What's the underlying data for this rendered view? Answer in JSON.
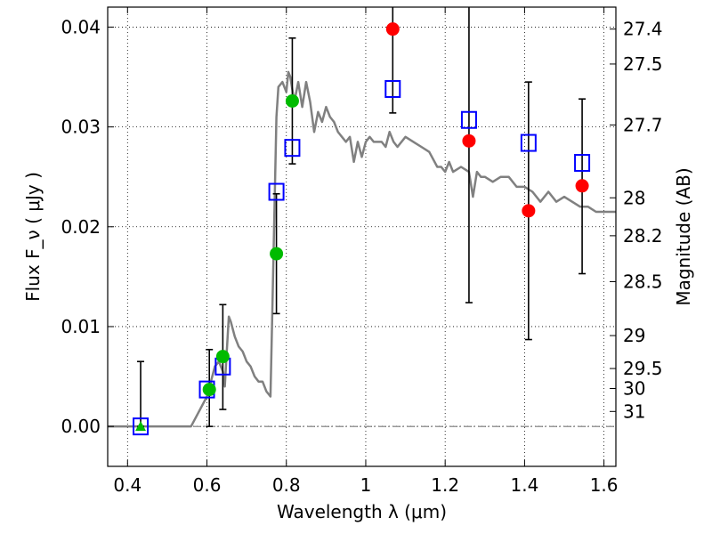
{
  "chart_data": {
    "type": "scatter",
    "xlabel": "Wavelength  λ (μm)",
    "ylabel": "Flux  F_ν  ( μJy )",
    "ylabel_right": "Magnitude (AB)",
    "xlim": [
      0.35,
      1.63
    ],
    "ylim": [
      -0.004,
      0.042
    ],
    "grid": true,
    "x_ticks": [
      0.4,
      0.6,
      0.8,
      1.0,
      1.2,
      1.4,
      1.6
    ],
    "x_tick_labels": [
      "0.4",
      "0.6",
      "0.8",
      "1",
      "1.2",
      "1.4",
      "1.6"
    ],
    "y_ticks": [
      0.0,
      0.01,
      0.02,
      0.03,
      0.04
    ],
    "y_tick_labels": [
      "0.00",
      "0.01",
      "0.02",
      "0.03",
      "0.04"
    ],
    "right_ticks": [
      {
        "label": "27.4",
        "flux": 0.0398
      },
      {
        "label": "27.5",
        "flux": 0.0363
      },
      {
        "label": "27.7",
        "flux": 0.0302
      },
      {
        "label": "28",
        "flux": 0.0229
      },
      {
        "label": "28.2",
        "flux": 0.0191
      },
      {
        "label": "28.5",
        "flux": 0.0145
      },
      {
        "label": "29",
        "flux": 0.0091
      },
      {
        "label": "29.5",
        "flux": 0.0058
      },
      {
        "label": "30",
        "flux": 0.0038
      },
      {
        "label": "31",
        "flux": 0.0015
      }
    ],
    "series": [
      {
        "type": "line",
        "color": "#808080",
        "x": [
          0.35,
          0.56,
          0.58,
          0.6,
          0.61,
          0.62,
          0.63,
          0.64,
          0.645,
          0.65,
          0.655,
          0.66,
          0.67,
          0.68,
          0.69,
          0.7,
          0.71,
          0.72,
          0.73,
          0.74,
          0.75,
          0.76,
          0.765,
          0.775,
          0.78,
          0.79,
          0.8,
          0.805,
          0.81,
          0.82,
          0.83,
          0.84,
          0.85,
          0.86,
          0.87,
          0.88,
          0.89,
          0.9,
          0.91,
          0.92,
          0.93,
          0.94,
          0.95,
          0.96,
          0.97,
          0.98,
          0.99,
          1.0,
          1.01,
          1.02,
          1.03,
          1.04,
          1.05,
          1.06,
          1.07,
          1.08,
          1.1,
          1.12,
          1.14,
          1.16,
          1.18,
          1.19,
          1.2,
          1.21,
          1.22,
          1.24,
          1.26,
          1.27,
          1.28,
          1.29,
          1.3,
          1.32,
          1.34,
          1.36,
          1.38,
          1.4,
          1.42,
          1.44,
          1.46,
          1.48,
          1.5,
          1.52,
          1.54,
          1.56,
          1.58,
          1.6,
          1.63
        ],
        "y": [
          0.0,
          0.0,
          0.0015,
          0.003,
          0.0045,
          0.006,
          0.0065,
          0.0055,
          0.004,
          0.0075,
          0.011,
          0.0105,
          0.009,
          0.008,
          0.0075,
          0.0065,
          0.006,
          0.005,
          0.0045,
          0.0045,
          0.0035,
          0.003,
          0.012,
          0.031,
          0.034,
          0.0345,
          0.0335,
          0.0355,
          0.035,
          0.0325,
          0.0345,
          0.032,
          0.0345,
          0.0325,
          0.0295,
          0.0315,
          0.0305,
          0.032,
          0.031,
          0.0305,
          0.0295,
          0.029,
          0.0285,
          0.029,
          0.0265,
          0.0285,
          0.027,
          0.0285,
          0.029,
          0.0285,
          0.0285,
          0.0285,
          0.028,
          0.0295,
          0.0285,
          0.028,
          0.029,
          0.0285,
          0.028,
          0.0275,
          0.026,
          0.026,
          0.0255,
          0.0265,
          0.0255,
          0.026,
          0.0255,
          0.023,
          0.0255,
          0.025,
          0.025,
          0.0245,
          0.025,
          0.025,
          0.024,
          0.024,
          0.0235,
          0.0225,
          0.0235,
          0.0225,
          0.023,
          0.0225,
          0.022,
          0.022,
          0.0215,
          0.0215,
          0.0215
        ]
      },
      {
        "type": "errorbar",
        "color": "#000000",
        "points": [
          {
            "x": 0.433,
            "lo": 0.0,
            "hi": 0.0065
          },
          {
            "x": 0.606,
            "lo": 0.0,
            "hi": 0.0077
          },
          {
            "x": 0.64,
            "lo": 0.0017,
            "hi": 0.0122
          },
          {
            "x": 0.775,
            "lo": 0.0113,
            "hi": 0.0233
          },
          {
            "x": 0.815,
            "lo": 0.0263,
            "hi": 0.0389
          },
          {
            "x": 1.068,
            "lo": 0.0314,
            "hi": 0.042
          },
          {
            "x": 1.26,
            "lo": 0.0124,
            "hi": 0.042
          },
          {
            "x": 1.41,
            "lo": 0.0087,
            "hi": 0.0345
          },
          {
            "x": 1.545,
            "lo": 0.0153,
            "hi": 0.0328
          }
        ]
      },
      {
        "type": "scatter",
        "marker": "square-open",
        "color": "#0000ff",
        "points": [
          {
            "x": 0.433,
            "y": 0.0
          },
          {
            "x": 0.6,
            "y": 0.0037
          },
          {
            "x": 0.64,
            "y": 0.006
          },
          {
            "x": 0.775,
            "y": 0.0235
          },
          {
            "x": 0.815,
            "y": 0.0279
          },
          {
            "x": 1.068,
            "y": 0.0338
          },
          {
            "x": 1.26,
            "y": 0.0307
          },
          {
            "x": 1.41,
            "y": 0.0284
          },
          {
            "x": 1.545,
            "y": 0.0264
          }
        ]
      },
      {
        "type": "scatter",
        "marker": "circle",
        "color": "#00bb00",
        "points": [
          {
            "x": 0.606,
            "y": 0.0037
          },
          {
            "x": 0.64,
            "y": 0.007
          },
          {
            "x": 0.775,
            "y": 0.0173
          },
          {
            "x": 0.815,
            "y": 0.0326
          }
        ]
      },
      {
        "type": "scatter",
        "marker": "triangle",
        "color": "#00bb00",
        "points": [
          {
            "x": 0.433,
            "y": 0.0
          }
        ]
      },
      {
        "type": "scatter",
        "marker": "circle",
        "color": "#ff0000",
        "points": [
          {
            "x": 1.068,
            "y": 0.0398
          },
          {
            "x": 1.26,
            "y": 0.0286
          },
          {
            "x": 1.41,
            "y": 0.0216
          },
          {
            "x": 1.545,
            "y": 0.0241
          }
        ]
      }
    ]
  }
}
